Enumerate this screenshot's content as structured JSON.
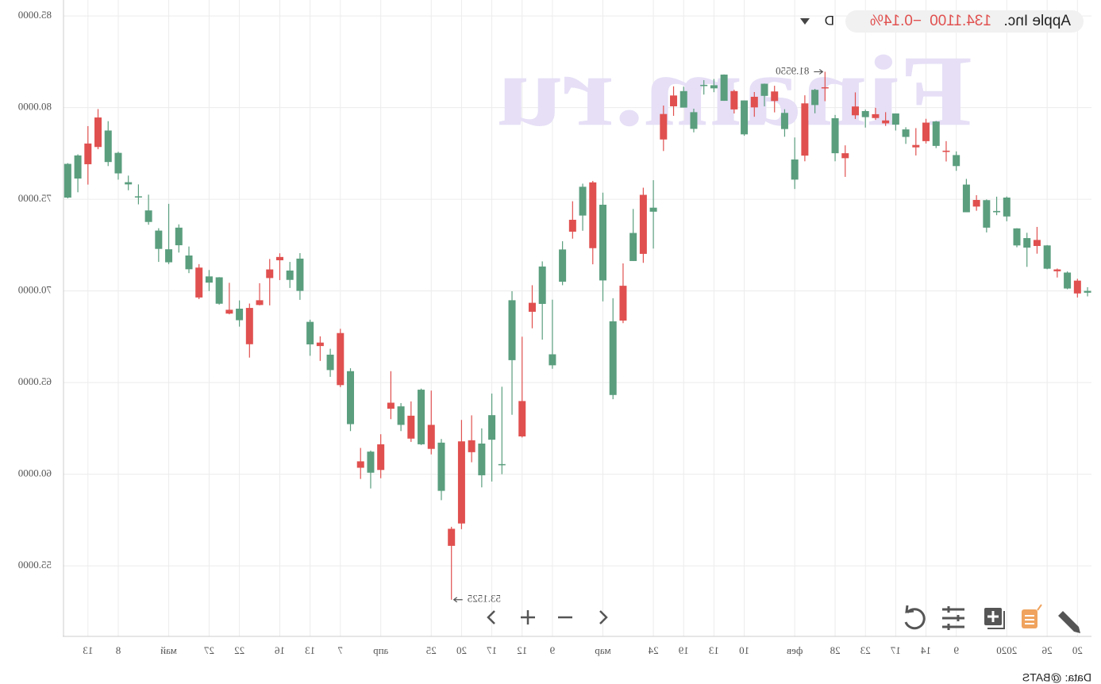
{
  "chart_data": {
    "type": "candlestick",
    "title": "Apple Inc.",
    "last_price": "134.1100",
    "change": "−0.14%",
    "interval": "D",
    "watermark": "Finam.ru",
    "source": "Data: @BATS",
    "up_color": "#5a9e7e",
    "down_color": "#e0504f",
    "grid": true,
    "categories": [
      null,
      "20",
      null,
      null,
      "26",
      null,
      null,
      null,
      "2020",
      null,
      null,
      null,
      null,
      "9",
      null,
      null,
      "14",
      null,
      null,
      "17",
      null,
      null,
      "23",
      null,
      null,
      "28",
      null,
      null,
      null,
      "фев",
      null,
      null,
      null,
      null,
      "10",
      null,
      null,
      "13",
      null,
      null,
      "19",
      null,
      null,
      "24",
      null,
      null,
      null,
      null,
      "мар",
      null,
      null,
      null,
      null,
      "9",
      null,
      null,
      "12",
      null,
      null,
      "17",
      null,
      null,
      "20",
      null,
      null,
      "25",
      null,
      null,
      null,
      null,
      "апр",
      null,
      null,
      null,
      "7",
      null,
      null,
      "13",
      null,
      null,
      "16",
      null,
      null,
      null,
      "22",
      null,
      null,
      "27",
      null,
      null,
      null,
      "май",
      null,
      null,
      null,
      null,
      "8",
      null,
      null,
      "13",
      null,
      null
    ],
    "open": [
      69.9,
      70.56,
      70.13,
      71.17,
      71.21,
      72.78,
      72.36,
      72.48,
      74.06,
      74.29,
      73.45,
      74.96,
      74.29,
      76.81,
      77.65,
      77.91,
      79.18,
      77.96,
      78.4,
      79.07,
      79.3,
      79.64,
      79.48,
      80.06,
      77.51,
      77.51,
      81.11,
      80.14,
      80.23,
      76.07,
      78.83,
      80.88,
      80.64,
      80.59,
      78.54,
      80.9,
      80.37,
      81.05,
      81.18,
      78.84,
      80.0,
      80.66,
      79.65,
      74.32,
      75.24,
      71.63,
      70.28,
      64.32,
      70.57,
      75.92,
      74.11,
      73.88,
      70.5,
      65.94,
      69.29,
      69.35,
      63.99,
      66.22,
      60.49,
      61.88,
      59.94,
      61.85,
      61.79,
      57.02,
      59.09,
      62.69,
      61.63,
      63.19,
      62.69,
      63.9,
      61.63,
      60.08,
      60.7,
      62.73,
      67.7,
      65.68,
      67.18,
      67.08,
      70.0,
      70.6,
      71.85,
      71.17,
      69.49,
      69.07,
      68.4,
      68.97,
      69.3,
      70.45,
      71.27,
      71.18,
      72.49,
      71.56,
      72.29,
      73.76,
      75.11,
      75.81,
      76.41,
      77.03,
      79.46,
      78.04,
      76.13,
      75.09
    ],
    "high": [
      70.2,
      70.66,
      71.06,
      71.22,
      72.5,
      73.49,
      73.17,
      73.42,
      75.15,
      75.14,
      74.99,
      75.22,
      76.11,
      77.61,
      78.17,
      79.27,
      79.39,
      78.88,
      78.93,
      79.68,
      79.75,
      79.99,
      79.89,
      80.83,
      77.94,
      79.6,
      81.955,
      81.02,
      80.67,
      78.37,
      79.91,
      81.19,
      81.31,
      80.85,
      80.39,
      80.97,
      81.81,
      81.56,
      81.5,
      79.94,
      81.14,
      81.16,
      80.11,
      76.04,
      75.63,
      74.47,
      71.5,
      69.6,
      75.36,
      76.0,
      75.85,
      74.89,
      72.71,
      69.52,
      71.61,
      70.31,
      67.5,
      69.98,
      64.77,
      64.4,
      62.5,
      63.21,
      62.96,
      57.13,
      61.92,
      64.56,
      64.67,
      63.97,
      63.88,
      65.62,
      62.18,
      61.29,
      61.43,
      65.78,
      67.93,
      66.84,
      67.52,
      68.43,
      72.06,
      71.58,
      72.05,
      71.74,
      70.42,
      69.31,
      69.48,
      70.44,
      70.75,
      71.14,
      71.46,
      72.42,
      73.63,
      74.75,
      73.42,
      75.25,
      75.81,
      76.29,
      77.59,
      79.26,
      79.92,
      78.99,
      77.45,
      76.97
    ],
    "low": [
      69.7,
      69.64,
      70.09,
      70.73,
      71.18,
      72.03,
      71.31,
      72.38,
      73.8,
      74.13,
      73.19,
      74.37,
      74.29,
      76.55,
      77.06,
      77.79,
      78.04,
      77.39,
      78.02,
      78.75,
      79.0,
      79.33,
      78.91,
      79.38,
      76.22,
      77.07,
      80.35,
      79.69,
      77.07,
      75.56,
      78.41,
      79.74,
      80.07,
      79.5,
      78.46,
      79.68,
      80.37,
      80.84,
      80.71,
      78.65,
      80.0,
      79.55,
      77.63,
      72.31,
      71.53,
      71.63,
      68.24,
      64.09,
      69.43,
      71.45,
      73.28,
      72.85,
      70.31,
      65.75,
      67.34,
      67.96,
      62.0,
      63.24,
      60.0,
      59.6,
      59.28,
      60.65,
      57.0,
      53.1525,
      58.58,
      61.08,
      61.59,
      61.76,
      62.35,
      63.0,
      59.78,
      59.22,
      59.74,
      62.35,
      64.75,
      65.31,
      66.18,
      66.46,
      69.51,
      70.16,
      70.59,
      69.21,
      69.21,
      66.36,
      68.05,
      68.72,
      69.25,
      69.99,
      69.55,
      70.97,
      72.09,
      71.46,
      71.58,
      73.61,
      74.72,
      75.49,
      76.07,
      76.81,
      77.73,
      75.8,
      75.38,
      75.05
    ],
    "close": [
      70.0,
      69.86,
      71.0,
      71.07,
      72.48,
      72.45,
      72.88,
      73.41,
      75.09,
      74.36,
      74.95,
      74.6,
      75.8,
      77.41,
      77.58,
      79.24,
      78.17,
      77.83,
      78.81,
      79.68,
      79.14,
      79.43,
      79.81,
      79.58,
      77.24,
      79.42,
      81.08,
      80.97,
      77.38,
      77.17,
      79.71,
      80.36,
      81.3,
      80.01,
      80.39,
      79.9,
      81.8,
      81.22,
      81.24,
      79.75,
      80.9,
      80.07,
      78.26,
      74.54,
      72.02,
      73.16,
      68.38,
      68.34,
      74.7,
      72.33,
      75.68,
      73.23,
      72.26,
      66.54,
      71.33,
      68.86,
      62.06,
      69.49,
      60.55,
      63.22,
      61.67,
      61.2,
      57.31,
      56.09,
      61.72,
      61.38,
      64.61,
      61.94,
      63.7,
      63.57,
      60.23,
      61.23,
      60.35,
      65.62,
      64.86,
      66.52,
      66.99,
      68.31,
      71.76,
      71.11,
      71.67,
      70.7,
      69.23,
      67.09,
      69.03,
      68.76,
      70.74,
      70.79,
      69.64,
      71.93,
      73.45,
      72.27,
      73.29,
      74.39,
      75.16,
      75.93,
      77.53,
      78.75,
      77.85,
      76.91,
      77.39,
      76.93
    ],
    "ylim": [
      51.15,
      85.87
    ],
    "yticks": [
      {
        "value": 55,
        "label": "55.0000"
      },
      {
        "value": 60,
        "label": "60.0000"
      },
      {
        "value": 65,
        "label": "65.0000"
      },
      {
        "value": 70,
        "label": "70.0000"
      },
      {
        "value": 75,
        "label": "75.0000"
      },
      {
        "value": 80,
        "label": "80.0000"
      },
      {
        "value": 85,
        "label": "85.0000"
      }
    ],
    "annotations": [
      {
        "value": 81.955,
        "label": "81.9550"
      },
      {
        "value": 53.1525,
        "label": "53.1525"
      }
    ]
  }
}
